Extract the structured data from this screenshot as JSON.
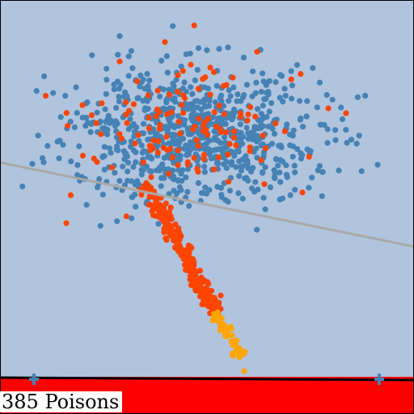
{
  "game": {
    "poison_count": "385",
    "poison_label": "Poisons"
  },
  "colors": {
    "background": "#b0c4de",
    "border": "#000000",
    "blue_points": "#4682b4",
    "orange_red_points": "#ff4500",
    "orange_points": "#ffa500",
    "separator_line": "#a9a9a9",
    "ground": "#ff0000",
    "ground_edge": "#000000",
    "handles": "#4682b4"
  },
  "icons": [
    "plus-handle-icon",
    "plus-handle-icon"
  ]
}
